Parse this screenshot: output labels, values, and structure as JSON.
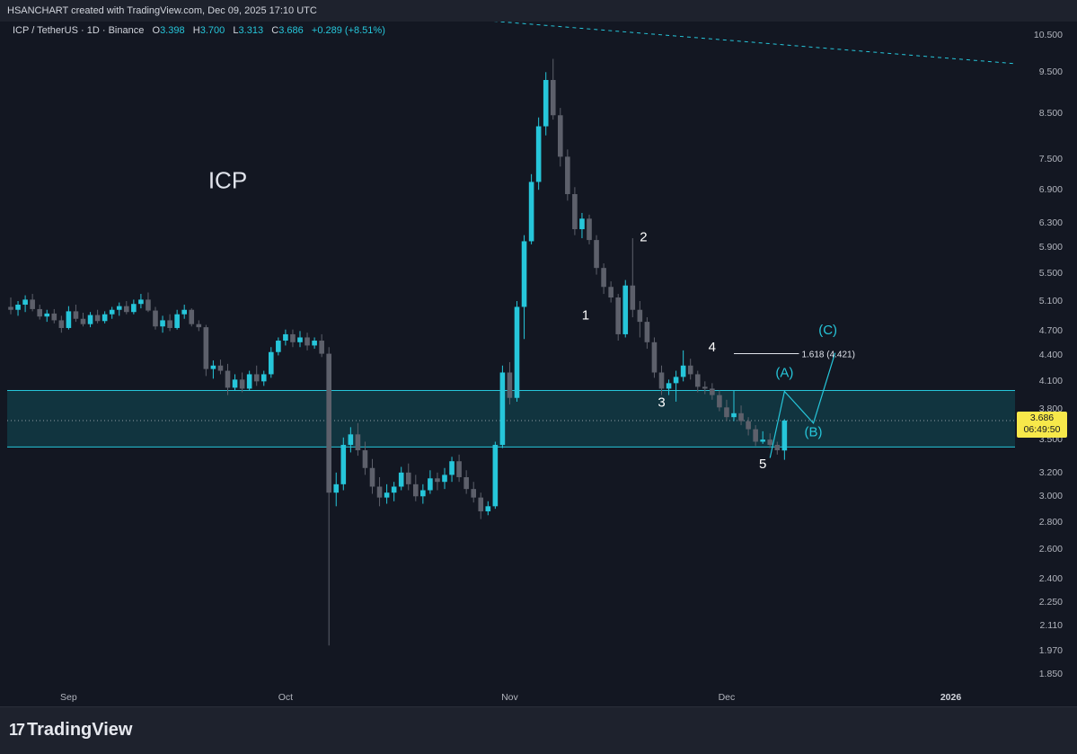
{
  "header": {
    "title": "HSANCHART created with TradingView.com, Dec 09, 2025 17:10 UTC"
  },
  "legend": {
    "symbol": "ICP / TetherUS · 1D · Binance",
    "o_label": "O",
    "o_value": "3.398",
    "h_label": "H",
    "h_value": "3.700",
    "l_label": "L",
    "l_value": "3.313",
    "c_label": "C",
    "c_value": "3.686",
    "change": "+0.289 (+8.51%)"
  },
  "price_box": {
    "price": "3.686",
    "countdown": "06:49:50"
  },
  "footer": {
    "brand": "TradingView",
    "logo_icon": "tradingview-logo-icon"
  },
  "colors": {
    "up": "#26c6da",
    "down": "#5d606b",
    "zone_fill": "#123a44",
    "zone_line": "#26c6da",
    "background": "#131722",
    "price_label": "#f7e84a"
  },
  "chart_data": {
    "type": "candlestick",
    "title": "ICP",
    "scale": "log",
    "ylim": [
      1.78,
      10.9
    ],
    "y_ticks": [
      "10.500",
      "9.500",
      "8.500",
      "7.500",
      "6.900",
      "6.300",
      "5.900",
      "5.500",
      "5.100",
      "4.700",
      "4.400",
      "4.100",
      "3.800",
      "3.500",
      "3.200",
      "3.000",
      "2.800",
      "2.600",
      "2.400",
      "2.250",
      "2.110",
      "1.970",
      "1.850"
    ],
    "x_ticks": [
      {
        "label": "Sep",
        "day": 8,
        "bold": false
      },
      {
        "label": "Oct",
        "day": 38,
        "bold": false
      },
      {
        "label": "Nov",
        "day": 69,
        "bold": false
      },
      {
        "label": "Dec",
        "day": 99,
        "bold": false
      },
      {
        "label": "2026",
        "day": 130,
        "bold": true
      }
    ],
    "x_domain": [
      0,
      139
    ],
    "candles": [
      [
        5.02,
        5.15,
        4.92,
        4.98
      ],
      [
        4.98,
        5.1,
        4.9,
        5.05
      ],
      [
        5.05,
        5.18,
        4.95,
        5.12
      ],
      [
        5.12,
        5.2,
        4.96,
        4.99
      ],
      [
        4.99,
        5.05,
        4.85,
        4.89
      ],
      [
        4.89,
        4.98,
        4.82,
        4.93
      ],
      [
        4.93,
        4.99,
        4.8,
        4.84
      ],
      [
        4.84,
        4.9,
        4.68,
        4.74
      ],
      [
        4.74,
        5.03,
        4.72,
        4.96
      ],
      [
        4.96,
        5.05,
        4.82,
        4.86
      ],
      [
        4.86,
        4.94,
        4.76,
        4.79
      ],
      [
        4.79,
        4.95,
        4.75,
        4.91
      ],
      [
        4.91,
        4.98,
        4.8,
        4.83
      ],
      [
        4.83,
        4.96,
        4.8,
        4.92
      ],
      [
        4.92,
        5.02,
        4.86,
        4.98
      ],
      [
        4.98,
        5.08,
        4.9,
        5.03
      ],
      [
        5.03,
        5.1,
        4.92,
        4.95
      ],
      [
        4.95,
        5.12,
        4.92,
        5.06
      ],
      [
        5.06,
        5.2,
        5.0,
        5.12
      ],
      [
        5.12,
        5.22,
        4.95,
        4.97
      ],
      [
        4.97,
        5.02,
        4.72,
        4.76
      ],
      [
        4.76,
        4.9,
        4.68,
        4.84
      ],
      [
        4.84,
        4.92,
        4.7,
        4.74
      ],
      [
        4.74,
        4.98,
        4.72,
        4.92
      ],
      [
        4.92,
        5.05,
        4.86,
        4.98
      ],
      [
        4.98,
        5.0,
        4.76,
        4.79
      ],
      [
        4.79,
        4.84,
        4.7,
        4.75
      ],
      [
        4.75,
        4.78,
        4.16,
        4.24
      ],
      [
        4.24,
        4.34,
        4.13,
        4.28
      ],
      [
        4.28,
        4.35,
        4.18,
        4.22
      ],
      [
        4.22,
        4.3,
        3.95,
        4.03
      ],
      [
        4.03,
        4.18,
        4.0,
        4.12
      ],
      [
        4.12,
        4.2,
        3.98,
        4.02
      ],
      [
        4.02,
        4.22,
        4.0,
        4.18
      ],
      [
        4.18,
        4.28,
        4.05,
        4.1
      ],
      [
        4.1,
        4.22,
        4.05,
        4.18
      ],
      [
        4.18,
        4.5,
        4.14,
        4.44
      ],
      [
        4.44,
        4.62,
        4.4,
        4.58
      ],
      [
        4.58,
        4.72,
        4.52,
        4.66
      ],
      [
        4.66,
        4.72,
        4.5,
        4.56
      ],
      [
        4.56,
        4.7,
        4.5,
        4.62
      ],
      [
        4.62,
        4.68,
        4.46,
        4.52
      ],
      [
        4.52,
        4.62,
        4.48,
        4.58
      ],
      [
        4.58,
        4.66,
        4.38,
        4.42
      ],
      [
        4.42,
        4.5,
        2.0,
        3.03
      ],
      [
        3.03,
        3.2,
        2.92,
        3.1
      ],
      [
        3.1,
        3.52,
        3.05,
        3.45
      ],
      [
        3.45,
        3.62,
        3.38,
        3.55
      ],
      [
        3.55,
        3.66,
        3.35,
        3.4
      ],
      [
        3.4,
        3.48,
        3.18,
        3.24
      ],
      [
        3.24,
        3.32,
        3.02,
        3.08
      ],
      [
        3.08,
        3.16,
        2.92,
        2.99
      ],
      [
        2.99,
        3.1,
        2.94,
        3.03
      ],
      [
        3.03,
        3.12,
        2.96,
        3.08
      ],
      [
        3.08,
        3.25,
        3.05,
        3.2
      ],
      [
        3.2,
        3.28,
        3.05,
        3.1
      ],
      [
        3.1,
        3.18,
        2.96,
        3.0
      ],
      [
        3.0,
        3.1,
        2.94,
        3.05
      ],
      [
        3.05,
        3.22,
        3.02,
        3.15
      ],
      [
        3.15,
        3.2,
        3.05,
        3.12
      ],
      [
        3.12,
        3.24,
        3.06,
        3.18
      ],
      [
        3.18,
        3.34,
        3.12,
        3.3
      ],
      [
        3.3,
        3.36,
        3.12,
        3.16
      ],
      [
        3.16,
        3.22,
        3.02,
        3.06
      ],
      [
        3.06,
        3.12,
        2.95,
        2.99
      ],
      [
        2.99,
        3.03,
        2.82,
        2.88
      ],
      [
        2.88,
        2.96,
        2.85,
        2.92
      ],
      [
        2.92,
        3.48,
        2.9,
        3.45
      ],
      [
        3.45,
        4.28,
        3.42,
        4.2
      ],
      [
        4.2,
        4.32,
        3.85,
        3.92
      ],
      [
        3.92,
        5.1,
        3.88,
        5.02
      ],
      [
        5.02,
        6.1,
        4.6,
        6.0
      ],
      [
        6.0,
        7.2,
        5.95,
        7.05
      ],
      [
        7.05,
        8.4,
        6.9,
        8.2
      ],
      [
        8.2,
        9.5,
        8.0,
        9.3
      ],
      [
        9.3,
        9.85,
        8.35,
        8.45
      ],
      [
        8.45,
        8.62,
        7.35,
        7.55
      ],
      [
        7.55,
        7.7,
        6.7,
        6.82
      ],
      [
        6.82,
        6.95,
        6.1,
        6.2
      ],
      [
        6.2,
        6.48,
        6.05,
        6.38
      ],
      [
        6.38,
        6.45,
        5.95,
        6.02
      ],
      [
        6.02,
        6.1,
        5.48,
        5.58
      ],
      [
        5.58,
        5.65,
        5.2,
        5.3
      ],
      [
        5.3,
        5.38,
        5.08,
        5.15
      ],
      [
        5.15,
        5.2,
        4.58,
        4.66
      ],
      [
        4.66,
        5.4,
        4.62,
        5.32
      ],
      [
        5.32,
        6.05,
        4.88,
        4.98
      ],
      [
        4.98,
        5.1,
        4.62,
        4.82
      ],
      [
        4.82,
        4.88,
        4.48,
        4.56
      ],
      [
        4.56,
        4.62,
        4.14,
        4.2
      ],
      [
        4.2,
        4.28,
        3.95,
        4.02
      ],
      [
        4.02,
        4.12,
        3.95,
        4.08
      ],
      [
        4.08,
        4.22,
        3.88,
        4.15
      ],
      [
        4.15,
        4.46,
        4.1,
        4.28
      ],
      [
        4.28,
        4.36,
        4.12,
        4.18
      ],
      [
        4.18,
        4.22,
        3.98,
        4.04
      ],
      [
        4.04,
        4.1,
        3.96,
        4.02
      ],
      [
        4.02,
        4.08,
        3.9,
        3.95
      ],
      [
        3.95,
        4.0,
        3.78,
        3.82
      ],
      [
        3.82,
        3.9,
        3.68,
        3.72
      ],
      [
        3.72,
        4.0,
        3.68,
        3.76
      ],
      [
        3.76,
        3.84,
        3.64,
        3.68
      ],
      [
        3.68,
        3.72,
        3.54,
        3.6
      ],
      [
        3.6,
        3.64,
        3.44,
        3.48
      ],
      [
        3.48,
        3.58,
        3.46,
        3.5
      ],
      [
        3.5,
        3.56,
        3.42,
        3.45
      ],
      [
        3.45,
        3.48,
        3.36,
        3.4
      ],
      [
        3.398,
        3.7,
        3.313,
        3.686
      ]
    ],
    "support_zone": {
      "low": 3.43,
      "high": 4.0
    },
    "current_price": 3.686,
    "trendline": {
      "from": {
        "day": 45,
        "price": 11.3
      },
      "to": {
        "day": 139,
        "price": 9.72
      }
    },
    "wave_labels": [
      {
        "text": "1",
        "day": 79.5,
        "price": 4.85,
        "color": "#ffffff"
      },
      {
        "text": "2",
        "day": 87.5,
        "price": 6.0,
        "color": "#ffffff"
      },
      {
        "text": "3",
        "day": 90,
        "price": 3.83,
        "color": "#ffffff"
      },
      {
        "text": "4",
        "day": 97,
        "price": 4.45,
        "color": "#ffffff"
      },
      {
        "text": "5",
        "day": 104,
        "price": 3.24,
        "color": "#ffffff"
      },
      {
        "text": "(A)",
        "day": 107,
        "price": 4.15,
        "color": "#26c6da"
      },
      {
        "text": "(B)",
        "day": 111,
        "price": 3.53,
        "color": "#26c6da"
      },
      {
        "text": "(C)",
        "day": 113,
        "price": 4.66,
        "color": "#26c6da"
      }
    ],
    "projection_path": [
      {
        "day": 105,
        "price": 3.33
      },
      {
        "day": 107,
        "price": 3.99
      },
      {
        "day": 111,
        "price": 3.66
      },
      {
        "day": 114,
        "price": 4.43
      }
    ],
    "fib_label": {
      "text": "1.618 (4.421)",
      "price": 4.421,
      "day_from": 100,
      "day_to": 109
    },
    "annotation": {
      "text": "ICP",
      "day": 30,
      "price": 6.93
    }
  }
}
